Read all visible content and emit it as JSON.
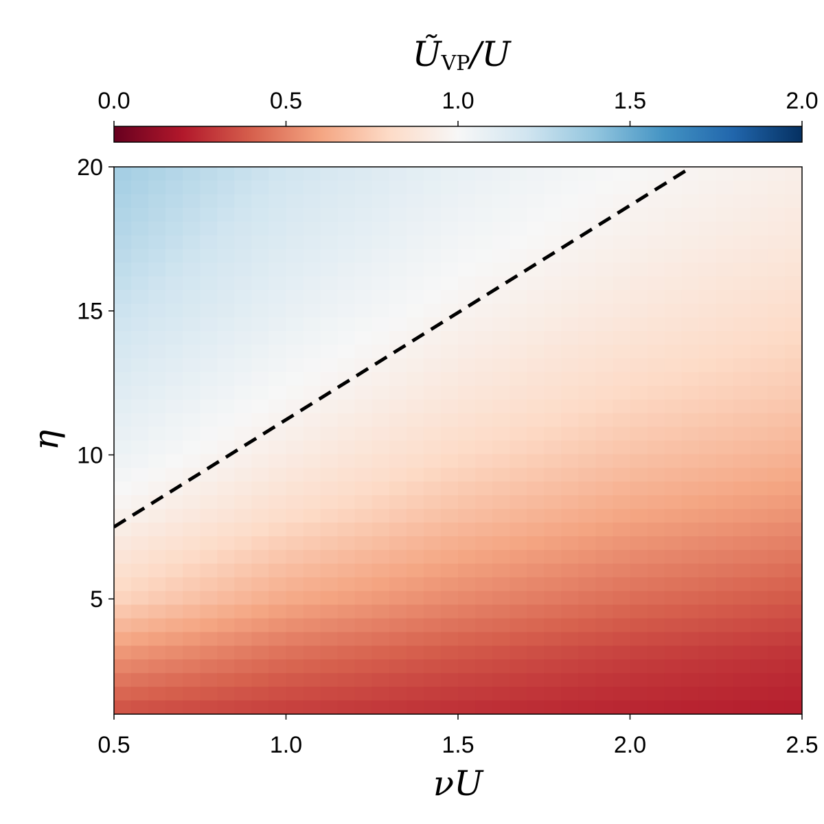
{
  "chart_data": {
    "type": "heatmap",
    "title": "",
    "xlabel": "νU",
    "ylabel": "η",
    "xlim": [
      0.5,
      2.5
    ],
    "ylim": [
      1,
      20
    ],
    "x_ticks": [
      "0.5",
      "1.0",
      "1.5",
      "2.0",
      "2.5"
    ],
    "y_ticks": [
      "5",
      "10",
      "15",
      "20"
    ],
    "colorbar": {
      "label_main": "Ũ",
      "label_sub": "VP",
      "label_tail": "/U",
      "range": [
        0.0,
        2.0
      ],
      "ticks": [
        "0.0",
        "0.5",
        "1.0",
        "1.5",
        "2.0"
      ],
      "colormap": "RdBu",
      "colormap_stops": [
        "#67001f",
        "#b2182b",
        "#d6604d",
        "#f4a582",
        "#fddbc7",
        "#f7f7f7",
        "#d1e5f0",
        "#92c5de",
        "#4393c3",
        "#2166ac",
        "#053061"
      ]
    },
    "grid_values": {
      "x": [
        0.5,
        1.0,
        1.5,
        2.0,
        2.5
      ],
      "y": [
        1,
        3,
        5,
        8,
        10,
        12,
        15,
        17.5,
        20
      ],
      "z": [
        [
          0.35,
          0.3,
          0.26,
          0.23,
          0.21
        ],
        [
          0.55,
          0.44,
          0.37,
          0.31,
          0.27
        ],
        [
          0.78,
          0.62,
          0.52,
          0.44,
          0.38
        ],
        [
          0.97,
          0.82,
          0.7,
          0.61,
          0.55
        ],
        [
          1.06,
          0.92,
          0.8,
          0.71,
          0.65
        ],
        [
          1.12,
          0.99,
          0.88,
          0.79,
          0.73
        ],
        [
          1.22,
          1.08,
          0.97,
          0.89,
          0.82
        ],
        [
          1.29,
          1.14,
          1.03,
          0.95,
          0.89
        ],
        [
          1.35,
          1.2,
          1.08,
          1.0,
          0.94
        ]
      ]
    },
    "dashed_line": {
      "x": [
        0.5,
        2.18
      ],
      "y": [
        7.5,
        20
      ]
    }
  }
}
